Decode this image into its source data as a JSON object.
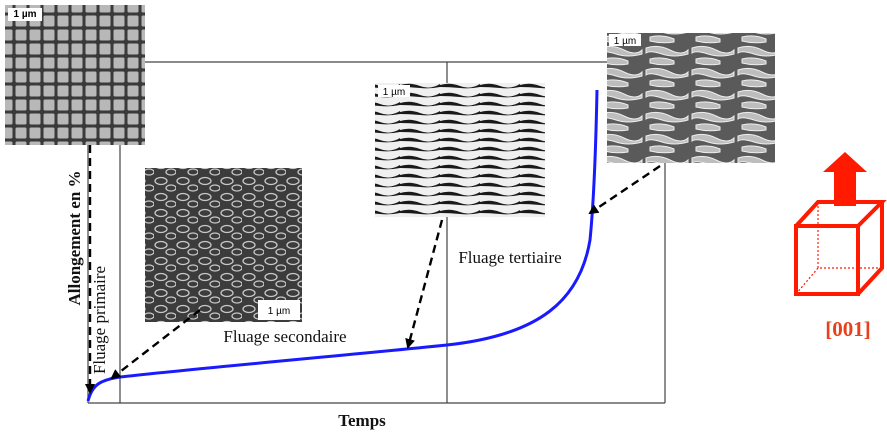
{
  "axes": {
    "y_label": "Allongement en %",
    "x_label": "Temps"
  },
  "stages": [
    {
      "label": "Fluage primaire"
    },
    {
      "label": "Fluage secondaire"
    },
    {
      "label": "Fluage tertiaire"
    }
  ],
  "micrographs": [
    {
      "scale": "1 µm"
    },
    {
      "scale": "1 µm"
    },
    {
      "scale": "1 µm"
    },
    {
      "scale": "1 µm"
    }
  ],
  "orientation": {
    "label": "[001]"
  }
}
